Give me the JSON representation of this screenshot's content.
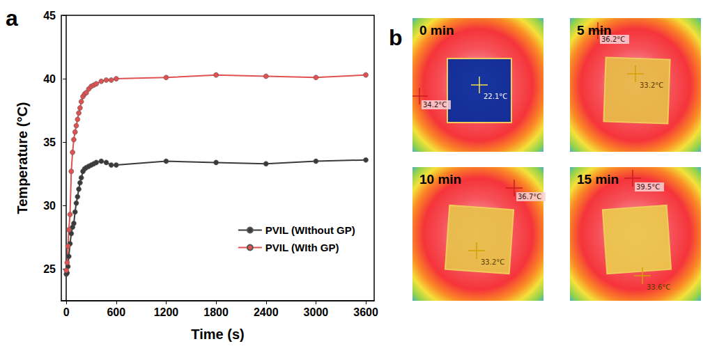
{
  "chart_data": {
    "type": "line",
    "panel_label": "a",
    "x_label": "Time (s)",
    "y_label": "Temperature (°C)",
    "xlim": [
      -60,
      3700
    ],
    "xticks": [
      0,
      600,
      1200,
      1800,
      2400,
      3000,
      3600
    ],
    "ylim": [
      22.5,
      45
    ],
    "yticks": [
      25,
      30,
      35,
      40,
      45
    ],
    "grid": false,
    "legend": "lower right",
    "series": [
      {
        "name": "PVIL (WIthout GP)",
        "color": "#3a3a3a",
        "marker": "circle",
        "line_style": "solid",
        "x": [
          0,
          10,
          20,
          30,
          45,
          60,
          75,
          90,
          105,
          120,
          135,
          150,
          165,
          180,
          200,
          220,
          240,
          270,
          300,
          330,
          360,
          420,
          480,
          540,
          600,
          1200,
          1800,
          2400,
          3000,
          3600
        ],
        "values": [
          24.6,
          24.7,
          25.2,
          26.0,
          27.0,
          27.8,
          28.3,
          28.6,
          29.5,
          30.2,
          30.7,
          31.3,
          31.8,
          32.2,
          32.7,
          32.9,
          33.0,
          33.1,
          33.2,
          33.3,
          33.4,
          33.5,
          33.4,
          33.2,
          33.2,
          33.5,
          33.4,
          33.3,
          33.5,
          33.6
        ]
      },
      {
        "name": "PVIL (WIth GP)",
        "color": "#e05252",
        "marker": "circle",
        "line_style": "solid",
        "x": [
          0,
          10,
          20,
          30,
          45,
          60,
          75,
          90,
          105,
          120,
          135,
          150,
          165,
          180,
          200,
          220,
          240,
          270,
          300,
          330,
          360,
          420,
          480,
          540,
          600,
          1200,
          1800,
          2400,
          3000,
          3600
        ],
        "values": [
          24.9,
          25.5,
          26.8,
          28.1,
          29.3,
          32.7,
          34.2,
          35.2,
          35.8,
          36.3,
          36.8,
          37.3,
          37.7,
          38.2,
          38.6,
          38.8,
          38.9,
          39.2,
          39.4,
          39.5,
          39.6,
          39.8,
          39.9,
          39.9,
          40.0,
          40.1,
          40.3,
          40.2,
          40.1,
          40.3
        ]
      }
    ]
  },
  "thermal_images": {
    "panel_label": "b",
    "frames": [
      {
        "time": "0 min",
        "square_reading": "22.1°C",
        "surround_reading": "34.2°C",
        "square_color": "#0b2d9c"
      },
      {
        "time": "5 min",
        "square_reading": "33.2°C",
        "surround_reading": "36.2°C",
        "square_color": "#e9b84a"
      },
      {
        "time": "10 min",
        "square_reading": "33.2°C",
        "surround_reading": "36.7°C",
        "square_color": "#e9bf4c"
      },
      {
        "time": "15 min",
        "square_reading": "33.6°C",
        "surround_reading": "39.5°C",
        "square_color": "#ecc64e"
      }
    ]
  }
}
